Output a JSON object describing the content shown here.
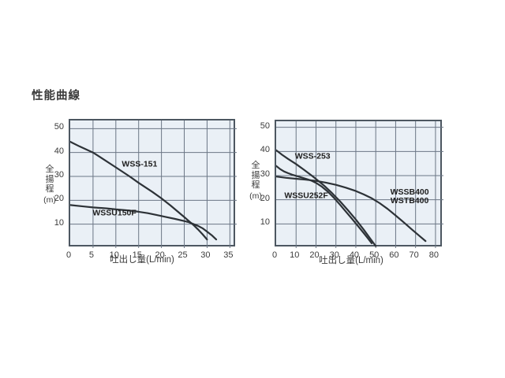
{
  "page": {
    "title": "性能曲線"
  },
  "colors": {
    "plot_background": "#eaf0f6",
    "grid_line": "#6b7685",
    "plot_border": "#4d5761",
    "curve": "#2d3237",
    "text": "#3b3b3b"
  },
  "chart_data": [
    {
      "type": "line",
      "title": "",
      "ylabel": "全揚程",
      "ylabel_unit": "(m)",
      "xlabel": "吐出し量(L/min)",
      "xlim": [
        0,
        36.5
      ],
      "ylim": [
        0,
        53.4
      ],
      "xticks": [
        0,
        5,
        10,
        15,
        20,
        25,
        30,
        35
      ],
      "yticks": [
        10,
        20,
        30,
        40,
        50
      ],
      "grid": true,
      "legend_position": "inline-labels",
      "series": [
        {
          "name": "WSS-151",
          "label_lines": [
            "WSS-151"
          ],
          "label_pos": [
            15.2,
            35.3
          ],
          "points": [
            [
              0,
              44.5
            ],
            [
              2,
              42.6
            ],
            [
              5,
              40
            ],
            [
              7,
              37.5
            ],
            [
              10,
              33.8
            ],
            [
              13,
              30
            ],
            [
              15,
              27.3
            ],
            [
              18,
              23.5
            ],
            [
              20,
              20.8
            ],
            [
              22,
              17.8
            ],
            [
              25,
              13
            ],
            [
              26,
              11.3
            ],
            [
              27,
              9.7
            ],
            [
              28,
              7.8
            ],
            [
              29,
              5.8
            ],
            [
              30,
              3.6
            ]
          ]
        },
        {
          "name": "WSSU150F",
          "label_lines": [
            "WSSU150F"
          ],
          "label_pos": [
            9.7,
            14.9
          ],
          "points": [
            [
              0,
              18
            ],
            [
              3,
              17.4
            ],
            [
              5,
              17
            ],
            [
              8,
              16.6
            ],
            [
              10,
              16.2
            ],
            [
              13,
              15.7
            ],
            [
              15,
              15.2
            ],
            [
              17,
              14.6
            ],
            [
              19,
              13.8
            ],
            [
              21,
              13
            ],
            [
              23,
              12.2
            ],
            [
              25,
              11.3
            ],
            [
              26,
              10.8
            ],
            [
              28,
              9.3
            ],
            [
              29,
              8.3
            ],
            [
              30,
              6.9
            ],
            [
              31,
              5.4
            ],
            [
              32,
              3.6
            ]
          ]
        }
      ]
    },
    {
      "type": "line",
      "title": "",
      "ylabel": "全揚程",
      "ylabel_unit": "(m)",
      "xlabel": "吐出し量(L/min)",
      "xlim": [
        0,
        84
      ],
      "ylim": [
        0,
        52.5
      ],
      "xticks": [
        0,
        10,
        20,
        30,
        40,
        50,
        60,
        70,
        80
      ],
      "yticks": [
        10,
        20,
        30,
        40,
        50
      ],
      "grid": true,
      "legend_position": "inline-labels",
      "series": [
        {
          "name": "WSS-253",
          "label_lines": [
            "WSS-253"
          ],
          "label_pos": [
            18.3,
            38.1
          ],
          "points": [
            [
              0,
              40.5
            ],
            [
              3,
              38.6
            ],
            [
              6,
              36.9
            ],
            [
              10,
              34.8
            ],
            [
              14,
              32.4
            ],
            [
              18,
              29.9
            ],
            [
              20,
              28.6
            ],
            [
              24,
              25.9
            ],
            [
              28,
              22.8
            ],
            [
              32,
              19.4
            ],
            [
              36,
              15.7
            ],
            [
              40,
              11.8
            ],
            [
              44,
              7.6
            ],
            [
              47,
              4.2
            ],
            [
              50,
              0.8
            ]
          ]
        },
        {
          "name": "WSSU252F",
          "label_lines": [
            "WSSU252F"
          ],
          "label_pos": [
            15.1,
            21.8
          ],
          "points": [
            [
              0,
              34
            ],
            [
              2,
              32.7
            ],
            [
              4,
              31.7
            ],
            [
              6,
              31
            ],
            [
              8,
              30.4
            ],
            [
              10,
              29.9
            ],
            [
              13,
              29.2
            ],
            [
              16,
              28.4
            ],
            [
              18,
              27.8
            ],
            [
              20,
              27
            ],
            [
              23,
              25.4
            ],
            [
              26,
              23.3
            ],
            [
              29,
              20.8
            ],
            [
              32,
              18
            ],
            [
              35,
              15.1
            ],
            [
              38,
              12.2
            ],
            [
              41,
              9.2
            ],
            [
              44,
              6.2
            ],
            [
              46,
              4.1
            ],
            [
              48,
              2
            ]
          ]
        },
        {
          "name": "WSSB400 / WSTB400",
          "label_lines": [
            "WSSB400",
            "WSTB400"
          ],
          "label_pos": [
            67,
            23.3
          ],
          "points": [
            [
              0,
              29.6
            ],
            [
              5,
              29.1
            ],
            [
              10,
              28.7
            ],
            [
              15,
              28.3
            ],
            [
              20,
              27.8
            ],
            [
              25,
              27.1
            ],
            [
              30,
              26.2
            ],
            [
              35,
              25
            ],
            [
              40,
              23.6
            ],
            [
              44,
              22.2
            ],
            [
              48,
              20.6
            ],
            [
              52,
              18.6
            ],
            [
              56,
              16.2
            ],
            [
              60,
              13.5
            ],
            [
              64,
              10.7
            ],
            [
              68,
              7.8
            ],
            [
              72,
              5
            ],
            [
              75,
              2.9
            ]
          ]
        }
      ]
    }
  ]
}
